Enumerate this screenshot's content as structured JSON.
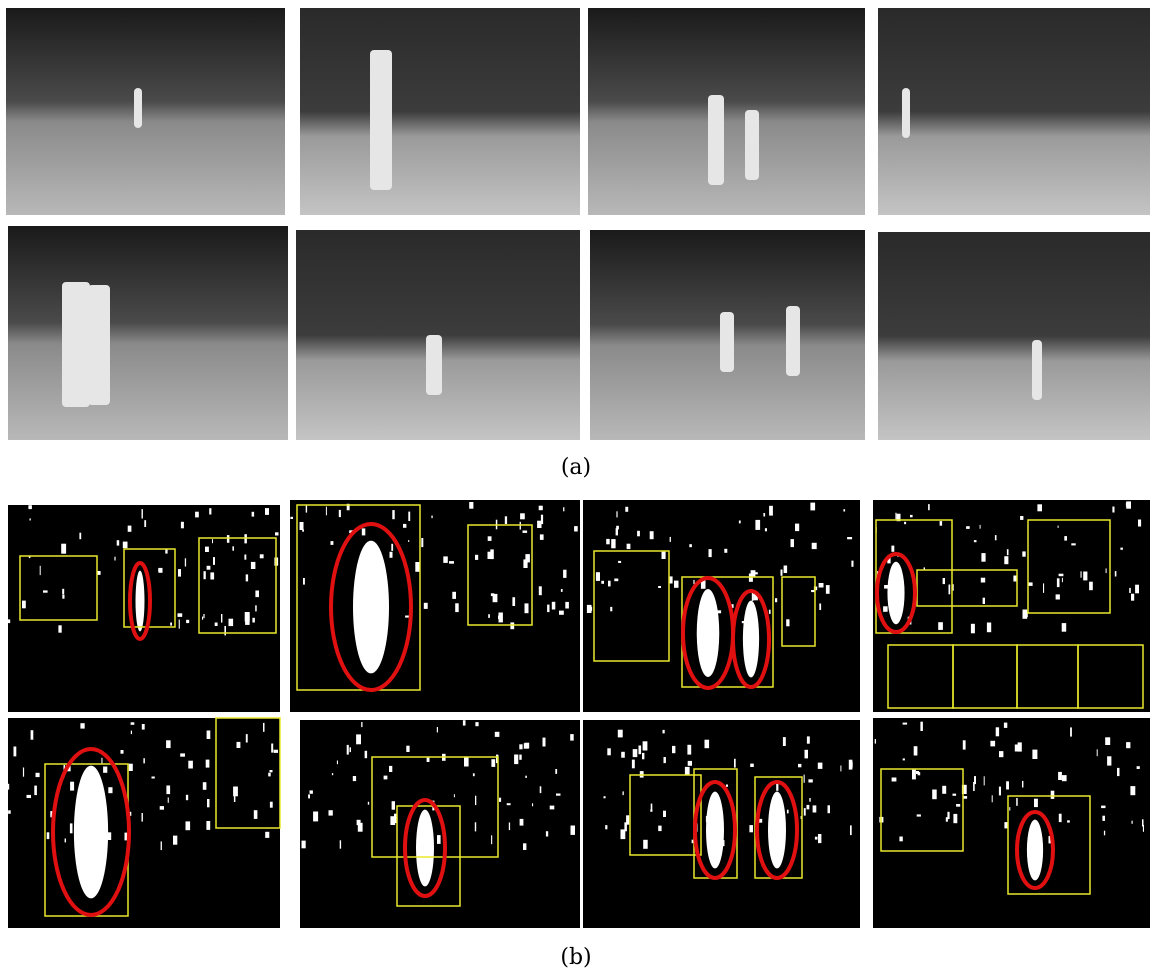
{
  "subfigures": [
    {
      "caption": "(a)"
    },
    {
      "caption": "(b)"
    }
  ]
}
